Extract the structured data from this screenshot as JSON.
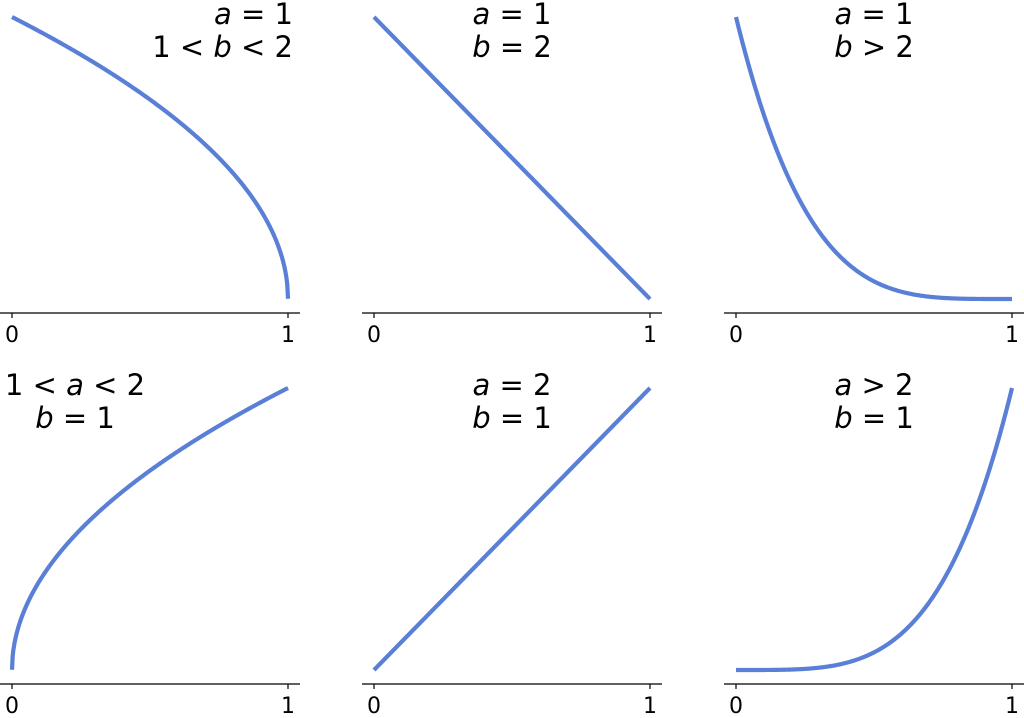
{
  "colors": {
    "curve": "#5a7fd6",
    "axis": "#000000"
  },
  "chart_data": [
    {
      "type": "line",
      "title": "",
      "xlabel": "",
      "ylabel": "",
      "xlim": [
        0,
        1
      ],
      "ylim": [
        0,
        1
      ],
      "grid": false,
      "x_ticks": [
        "0",
        "1"
      ],
      "annotation": [
        [
          {
            "t": "a",
            "i": true
          },
          {
            "t": " = 1",
            "i": false
          }
        ],
        [
          {
            "t": "1 < ",
            "i": false
          },
          {
            "t": "b",
            "i": true
          },
          {
            "t": " < 2",
            "i": false
          }
        ]
      ],
      "annotation_align": "end",
      "formula": "kumaraswamy",
      "a": 1,
      "b": 1.5,
      "series": [
        {
          "x": [
            0,
            0.25,
            0.5,
            0.75,
            0.96,
            1
          ],
          "y": [
            1,
            0.87,
            0.71,
            0.5,
            0.2,
            0
          ]
        }
      ]
    },
    {
      "type": "line",
      "title": "",
      "xlabel": "",
      "ylabel": "",
      "xlim": [
        0,
        1
      ],
      "ylim": [
        0,
        1
      ],
      "grid": false,
      "x_ticks": [
        "0",
        "1"
      ],
      "annotation": [
        [
          {
            "t": "a",
            "i": true
          },
          {
            "t": " = 1",
            "i": false
          }
        ],
        [
          {
            "t": "b",
            "i": true
          },
          {
            "t": " = 2",
            "i": false
          }
        ]
      ],
      "annotation_align": "middle",
      "formula": "kumaraswamy",
      "a": 1,
      "b": 2,
      "series": [
        {
          "x": [
            0,
            0.5,
            1
          ],
          "y": [
            1,
            0.5,
            0
          ]
        }
      ]
    },
    {
      "type": "line",
      "title": "",
      "xlabel": "",
      "ylabel": "",
      "xlim": [
        0,
        1
      ],
      "ylim": [
        0,
        1
      ],
      "grid": false,
      "x_ticks": [
        "0",
        "1"
      ],
      "annotation": [
        [
          {
            "t": "a",
            "i": true
          },
          {
            "t": " = 1",
            "i": false
          }
        ],
        [
          {
            "t": "b",
            "i": true
          },
          {
            "t": " > 2",
            "i": false
          }
        ]
      ],
      "annotation_align": "middle",
      "formula": "kumaraswamy",
      "a": 1,
      "b": 5,
      "series": [
        {
          "x": [
            0,
            0.25,
            0.5,
            0.75,
            1
          ],
          "y": [
            1,
            0.32,
            0.06,
            0.004,
            0
          ]
        }
      ]
    },
    {
      "type": "line",
      "title": "",
      "xlabel": "",
      "ylabel": "",
      "xlim": [
        0,
        1
      ],
      "ylim": [
        0,
        1
      ],
      "grid": false,
      "x_ticks": [
        "0",
        "1"
      ],
      "annotation": [
        [
          {
            "t": "1 < ",
            "i": false
          },
          {
            "t": "a",
            "i": true
          },
          {
            "t": " < 2",
            "i": false
          }
        ],
        [
          {
            "t": "b",
            "i": true
          },
          {
            "t": " = 1",
            "i": false
          }
        ]
      ],
      "annotation_align": "middle",
      "formula": "kumaraswamy",
      "a": 1.5,
      "b": 1,
      "series": [
        {
          "x": [
            0,
            0.04,
            0.25,
            0.5,
            0.75,
            1
          ],
          "y": [
            0,
            0.2,
            0.5,
            0.71,
            0.87,
            1
          ]
        }
      ]
    },
    {
      "type": "line",
      "title": "",
      "xlabel": "",
      "ylabel": "",
      "xlim": [
        0,
        1
      ],
      "ylim": [
        0,
        1
      ],
      "grid": false,
      "x_ticks": [
        "0",
        "1"
      ],
      "annotation": [
        [
          {
            "t": "a",
            "i": true
          },
          {
            "t": " = 2",
            "i": false
          }
        ],
        [
          {
            "t": "b",
            "i": true
          },
          {
            "t": " = 1",
            "i": false
          }
        ]
      ],
      "annotation_align": "middle",
      "formula": "kumaraswamy",
      "a": 2,
      "b": 1,
      "series": [
        {
          "x": [
            0,
            0.5,
            1
          ],
          "y": [
            0,
            0.5,
            1
          ]
        }
      ]
    },
    {
      "type": "line",
      "title": "",
      "xlabel": "",
      "ylabel": "",
      "xlim": [
        0,
        1
      ],
      "ylim": [
        0,
        1
      ],
      "grid": false,
      "x_ticks": [
        "0",
        "1"
      ],
      "annotation": [
        [
          {
            "t": "a",
            "i": true
          },
          {
            "t": " > 2",
            "i": false
          }
        ],
        [
          {
            "t": "b",
            "i": true
          },
          {
            "t": " = 1",
            "i": false
          }
        ]
      ],
      "annotation_align": "middle",
      "formula": "kumaraswamy",
      "a": 5,
      "b": 1,
      "series": [
        {
          "x": [
            0,
            0.25,
            0.5,
            0.75,
            1
          ],
          "y": [
            0,
            0.004,
            0.06,
            0.32,
            1
          ]
        }
      ]
    }
  ]
}
